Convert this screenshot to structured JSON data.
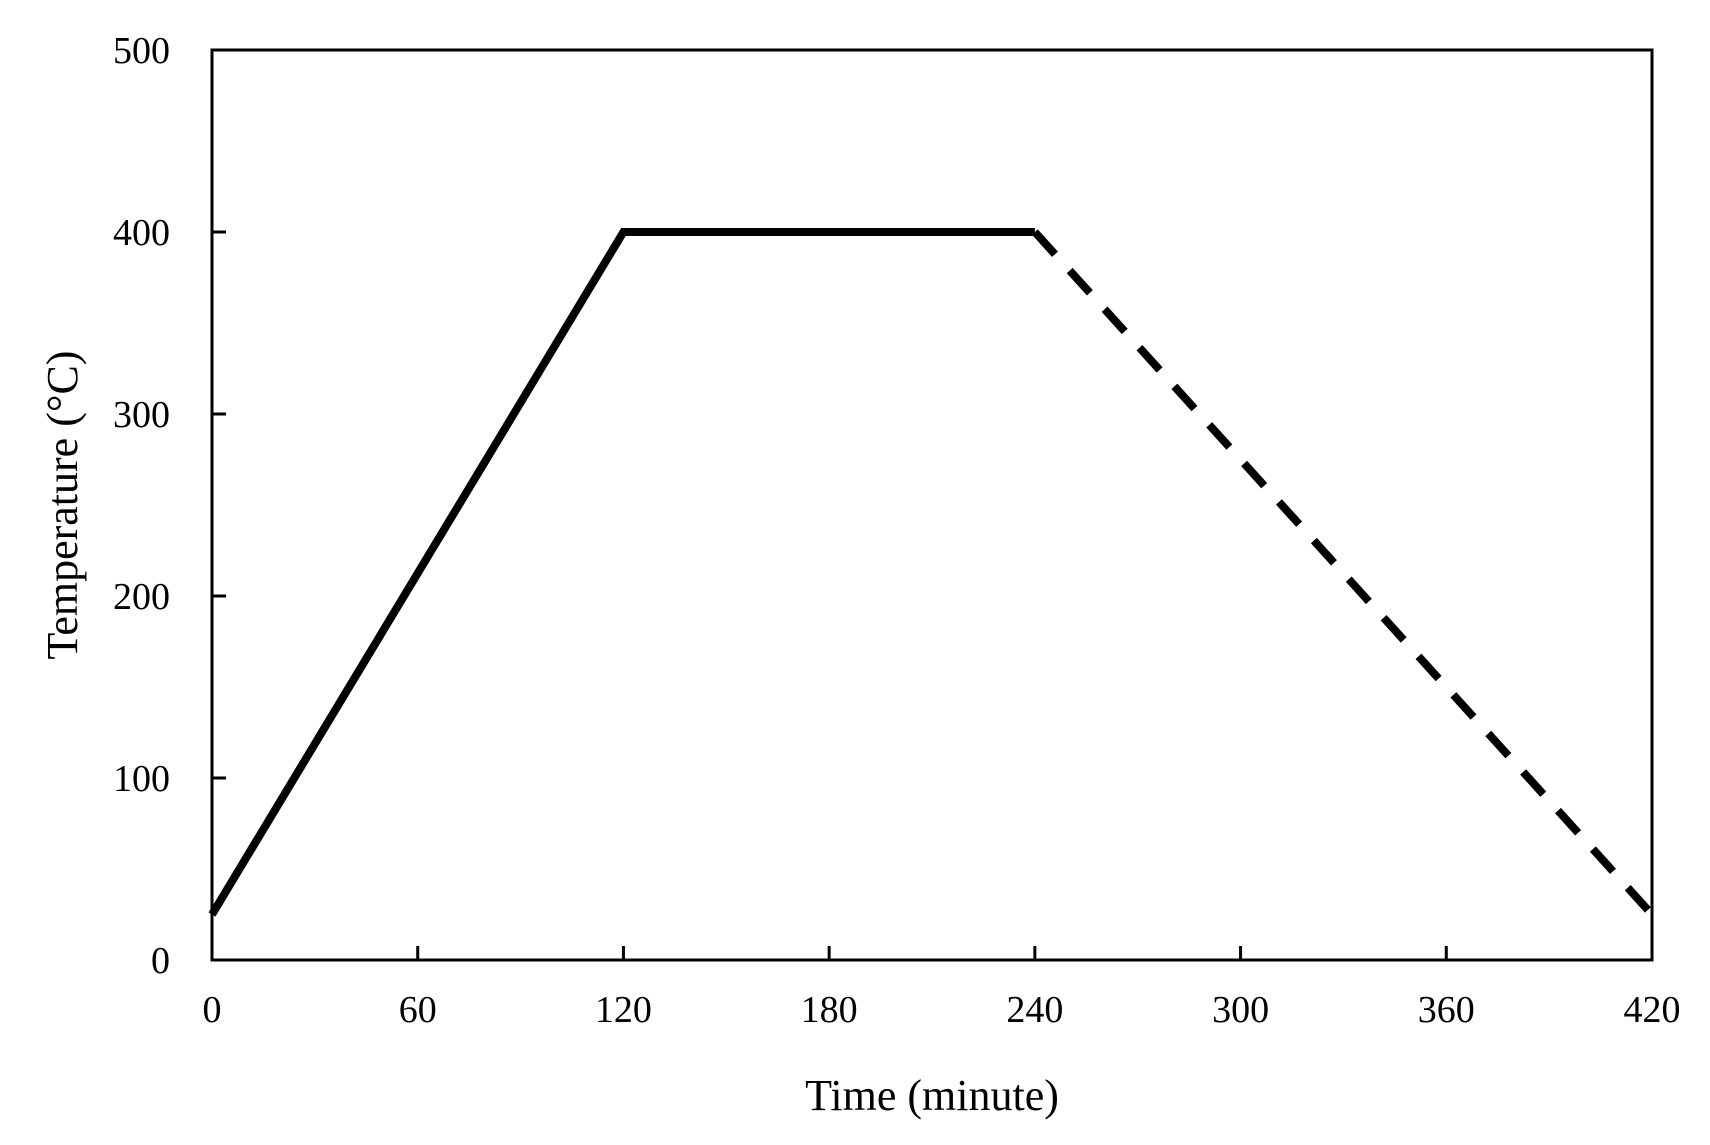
{
  "chart_data": {
    "type": "line",
    "title": "",
    "xlabel": "Time (minute)",
    "ylabel": "Temperature (°C)",
    "xlim": [
      0,
      420
    ],
    "ylim": [
      0,
      500
    ],
    "xticks": [
      0,
      60,
      120,
      180,
      240,
      300,
      360,
      420
    ],
    "yticks": [
      0,
      100,
      200,
      300,
      400,
      500
    ],
    "grid": false,
    "legend": "none",
    "line_color": "#000000",
    "series": [
      {
        "style": "solid",
        "x": [
          0,
          120,
          240
        ],
        "y": [
          25,
          400,
          400
        ]
      },
      {
        "style": "dashed",
        "x": [
          240,
          420
        ],
        "y": [
          400,
          25
        ]
      }
    ]
  }
}
